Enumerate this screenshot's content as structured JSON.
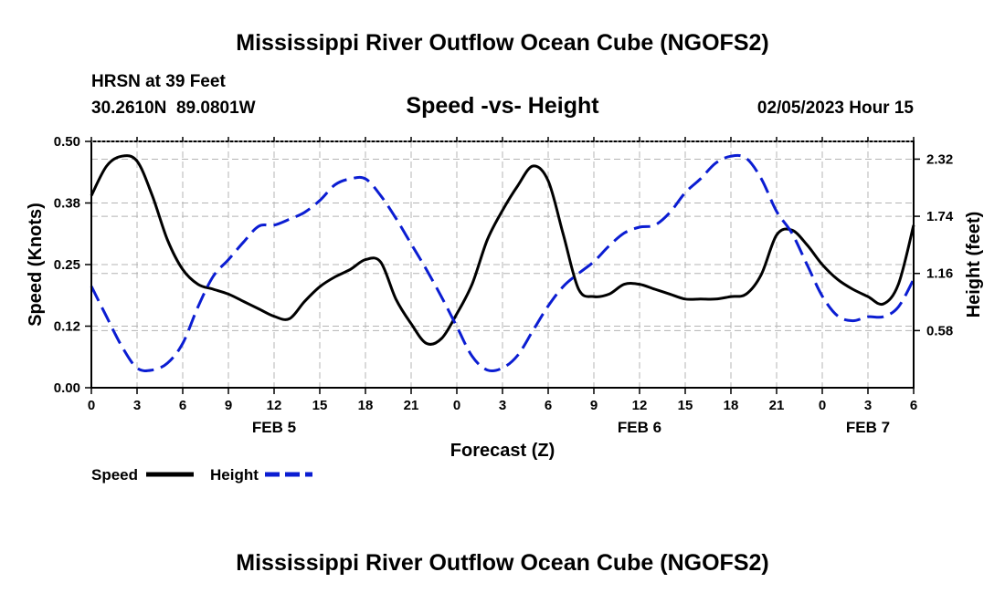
{
  "page": {
    "main_title": "Mississippi River Outflow Ocean Cube (NGOFS2)",
    "bottom_title": "Mississippi River Outflow Ocean Cube (NGOFS2)",
    "station_line": "HRSN at 39 Feet",
    "coords_line": "30.2610N  89.0801W",
    "datetime_line": "02/05/2023 Hour 15"
  },
  "chart_data": {
    "type": "line",
    "title": "Speed -vs- Height",
    "xlabel": "Forecast (Z)",
    "ylabel": "Speed (Knots)",
    "y2label": "Height (feet)",
    "xlim": [
      0,
      54
    ],
    "ylim": [
      0,
      0.5
    ],
    "y2lim": [
      0,
      2.5
    ],
    "x_ticks": [
      0,
      3,
      6,
      9,
      12,
      15,
      18,
      21,
      24,
      27,
      30,
      33,
      36,
      39,
      42,
      45,
      48,
      51,
      54
    ],
    "x_tick_labels": [
      "0",
      "3",
      "6",
      "9",
      "12",
      "15",
      "18",
      "21",
      "0",
      "3",
      "6",
      "9",
      "12",
      "15",
      "18",
      "21",
      "0",
      "3",
      "6"
    ],
    "y_ticks": [
      0,
      0.125,
      0.25,
      0.375,
      0.5
    ],
    "y_tick_labels": [
      "0.00",
      "0.12",
      "0.25",
      "0.38",
      "0.50"
    ],
    "y2_ticks": [
      0.58,
      1.16,
      1.74,
      2.32
    ],
    "y2_tick_labels": [
      "0.58",
      "1.16",
      "1.74",
      "2.32"
    ],
    "day_labels": [
      {
        "x": 12,
        "label": "FEB 5"
      },
      {
        "x": 36,
        "label": "FEB 6"
      },
      {
        "x": 51,
        "label": "FEB 7"
      }
    ],
    "grid": true,
    "legend_position": "bottom-left",
    "series": [
      {
        "name": "Speed",
        "axis": "left",
        "color": "#000000",
        "dash": "solid",
        "x": [
          0,
          1,
          2,
          3,
          4,
          5,
          6,
          7,
          8,
          9,
          10,
          11,
          12,
          13,
          14,
          15,
          16,
          17,
          18,
          19,
          20,
          21,
          22,
          23,
          24,
          25,
          26,
          27,
          28,
          29,
          30,
          31,
          32,
          33,
          34,
          35,
          36,
          37,
          38,
          39,
          40,
          41,
          42,
          43,
          44,
          45,
          46,
          47,
          48,
          49,
          50,
          51,
          52,
          53,
          54
        ],
        "values": [
          0.39,
          0.45,
          0.47,
          0.46,
          0.39,
          0.3,
          0.24,
          0.21,
          0.2,
          0.19,
          0.175,
          0.16,
          0.145,
          0.14,
          0.175,
          0.205,
          0.225,
          0.24,
          0.26,
          0.255,
          0.18,
          0.13,
          0.09,
          0.1,
          0.15,
          0.21,
          0.3,
          0.36,
          0.41,
          0.45,
          0.42,
          0.31,
          0.2,
          0.185,
          0.19,
          0.21,
          0.21,
          0.2,
          0.19,
          0.18,
          0.18,
          0.18,
          0.185,
          0.19,
          0.23,
          0.31,
          0.32,
          0.29,
          0.25,
          0.22,
          0.2,
          0.185,
          0.17,
          0.21,
          0.33
        ]
      },
      {
        "name": "Height",
        "axis": "right",
        "color": "#0b1dd2",
        "dash": "dashed",
        "x": [
          0,
          1,
          2,
          3,
          4,
          5,
          6,
          7,
          8,
          9,
          10,
          11,
          12,
          13,
          14,
          15,
          16,
          17,
          18,
          19,
          20,
          21,
          22,
          23,
          24,
          25,
          26,
          27,
          28,
          29,
          30,
          31,
          32,
          33,
          34,
          35,
          36,
          37,
          38,
          39,
          40,
          41,
          42,
          43,
          44,
          45,
          46,
          47,
          48,
          49,
          50,
          51,
          52,
          53,
          54
        ],
        "values": [
          1.03,
          0.72,
          0.42,
          0.2,
          0.18,
          0.25,
          0.45,
          0.82,
          1.13,
          1.3,
          1.48,
          1.64,
          1.65,
          1.71,
          1.78,
          1.9,
          2.06,
          2.12,
          2.12,
          1.95,
          1.72,
          1.46,
          1.2,
          0.92,
          0.62,
          0.32,
          0.18,
          0.2,
          0.33,
          0.58,
          0.83,
          1.03,
          1.16,
          1.28,
          1.44,
          1.57,
          1.63,
          1.65,
          1.78,
          1.98,
          2.12,
          2.28,
          2.35,
          2.33,
          2.12,
          1.79,
          1.57,
          1.25,
          0.93,
          0.73,
          0.68,
          0.72,
          0.72,
          0.82,
          1.1
        ]
      }
    ]
  }
}
